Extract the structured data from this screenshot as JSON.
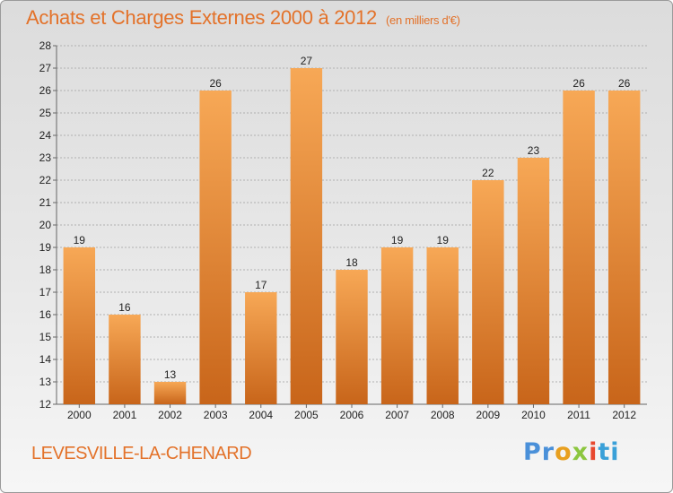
{
  "title": "Achats et Charges Externes 2000 à 2012",
  "unit": "(en milliers d'€)",
  "commune": "LEVESVILLE-LA-CHENARD",
  "logo": {
    "parts": [
      "Pr",
      "o",
      "x",
      "i",
      "ti"
    ],
    "colors": [
      "#4a90d9",
      "#e8a020",
      "#8cc63f",
      "#e8482f",
      "#3aa0d8"
    ]
  },
  "colors": {
    "title": "#e3722a",
    "bar_top": "#f7a856",
    "bar_bottom": "#c8651a",
    "grid": "#b0b0b0"
  },
  "chart_data": {
    "type": "bar",
    "title": "Achats et Charges Externes 2000 à 2012",
    "xlabel": "",
    "ylabel": "",
    "categories": [
      "2000",
      "2001",
      "2002",
      "2003",
      "2004",
      "2005",
      "2006",
      "2007",
      "2008",
      "2009",
      "2010",
      "2011",
      "2012"
    ],
    "values": [
      19,
      16,
      13,
      26,
      17,
      27,
      18,
      19,
      19,
      22,
      23,
      26,
      26
    ],
    "ylim": [
      12,
      28
    ],
    "yticks": [
      12,
      13,
      14,
      15,
      16,
      17,
      18,
      19,
      20,
      21,
      22,
      23,
      24,
      25,
      26,
      27,
      28
    ],
    "grid": true,
    "data_labels": true
  }
}
